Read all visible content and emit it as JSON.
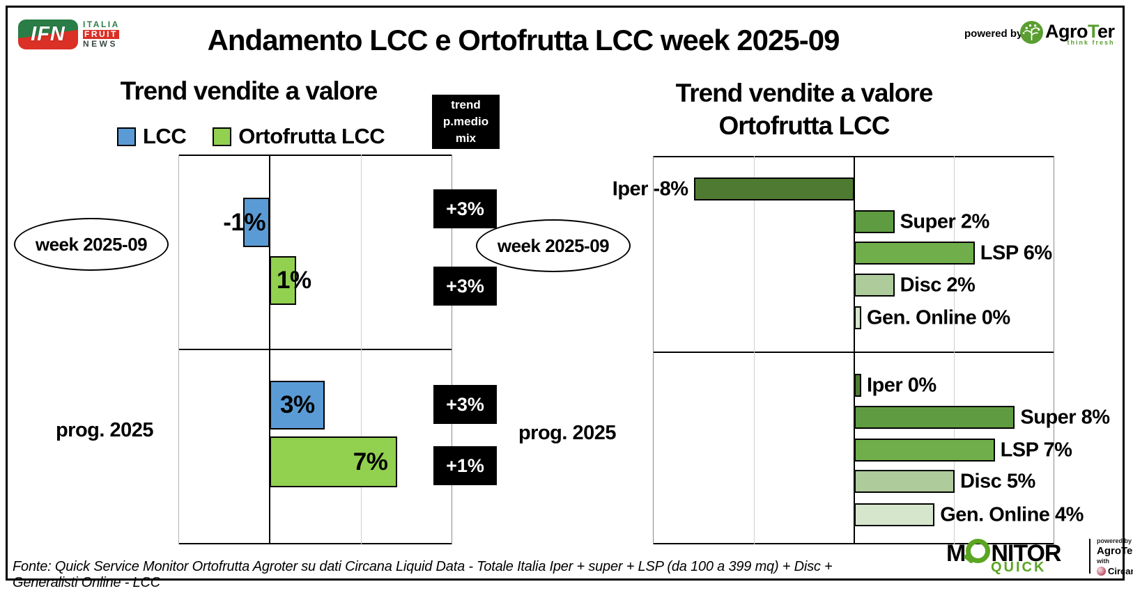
{
  "header": {
    "ifn": {
      "abbr": "IFN",
      "line1": "ITALIA",
      "line2": "FRUIT",
      "line3": "NEWS"
    },
    "title": "Andamento LCC e Ortofrutta LCC week 2025-09",
    "powered_by": "powered by",
    "agroter": {
      "name_parts": [
        "Agro",
        "T",
        "er"
      ],
      "tagline": "think fresh"
    }
  },
  "chart_data": [
    {
      "type": "bar",
      "orientation": "horizontal",
      "title": "Trend vendite a valore",
      "unit": "%",
      "xlim": [
        -5,
        10
      ],
      "gridline_step": 5,
      "legend_position": "top",
      "legend": [
        {
          "label": "LCC",
          "color": "#5b9bd5"
        },
        {
          "label": "Ortofrutta LCC",
          "color": "#92d050"
        }
      ],
      "mix_column_header": [
        "trend",
        "p.medio",
        "mix"
      ],
      "sections": [
        {
          "label": "week 2025-09",
          "bars": [
            {
              "series": "LCC",
              "value": -1,
              "label": "-1%"
            },
            {
              "series": "Ortofrutta LCC",
              "value": 1,
              "label": "1%"
            }
          ],
          "mix": [
            {
              "label": "+3%",
              "value": 3
            },
            {
              "label": "+3%",
              "value": 3
            }
          ]
        },
        {
          "label": "prog. 2025",
          "bars": [
            {
              "series": "LCC",
              "value": 3,
              "label": "3%"
            },
            {
              "series": "Ortofrutta LCC",
              "value": 7,
              "label": "7%"
            }
          ],
          "mix": [
            {
              "label": "+3%",
              "value": 3
            },
            {
              "label": "+1%",
              "value": 1
            }
          ]
        }
      ]
    },
    {
      "type": "bar",
      "orientation": "horizontal",
      "title": "Trend vendite a valore Ortofrutta LCC",
      "title_lines": [
        "Trend vendite a valore",
        "Ortofrutta LCC"
      ],
      "unit": "%",
      "xlim": [
        -10,
        10
      ],
      "gridline_step": 5,
      "sections": [
        {
          "label": "week 2025-09",
          "bars": [
            {
              "name": "Iper",
              "value": -8,
              "label": "Iper -8%",
              "color": "#4e7b31"
            },
            {
              "name": "Super",
              "value": 2,
              "label": "Super 2%",
              "color": "#5f9c41"
            },
            {
              "name": "LSP",
              "value": 6,
              "label": "LSP 6%",
              "color": "#6fae4b"
            },
            {
              "name": "Disc",
              "value": 2,
              "label": "Disc 2%",
              "color": "#aecb9b"
            },
            {
              "name": "Gen. Online",
              "value": 0,
              "label": "Gen. Online 0%",
              "color": "#d6e6cc"
            }
          ]
        },
        {
          "label": "prog. 2025",
          "bars": [
            {
              "name": "Iper",
              "value": 0,
              "label": "Iper 0%",
              "color": "#4e7b31"
            },
            {
              "name": "Super",
              "value": 8,
              "label": "Super 8%",
              "color": "#5f9c41"
            },
            {
              "name": "LSP",
              "value": 7,
              "label": "LSP 7%",
              "color": "#6fae4b"
            },
            {
              "name": "Disc",
              "value": 5,
              "label": "Disc 5%",
              "color": "#aecb9b"
            },
            {
              "name": "Gen. Online",
              "value": 4,
              "label": "Gen. Online 4%",
              "color": "#d6e6cc"
            }
          ]
        }
      ]
    }
  ],
  "footer": {
    "fonte": "Fonte: Quick Service Monitor Ortofrutta Agroter su dati Circana Liquid Data - Totale Italia Iper + super + LSP (da 100 a 399 mq) + Disc + Generalisti Online - LCC",
    "monitor": {
      "word_start": "M",
      "word_rest": "NITOR",
      "sub": "QUICK",
      "powered_by": "powered by",
      "agroter": "AgroTer",
      "with": "with",
      "circana": "Circana."
    }
  }
}
